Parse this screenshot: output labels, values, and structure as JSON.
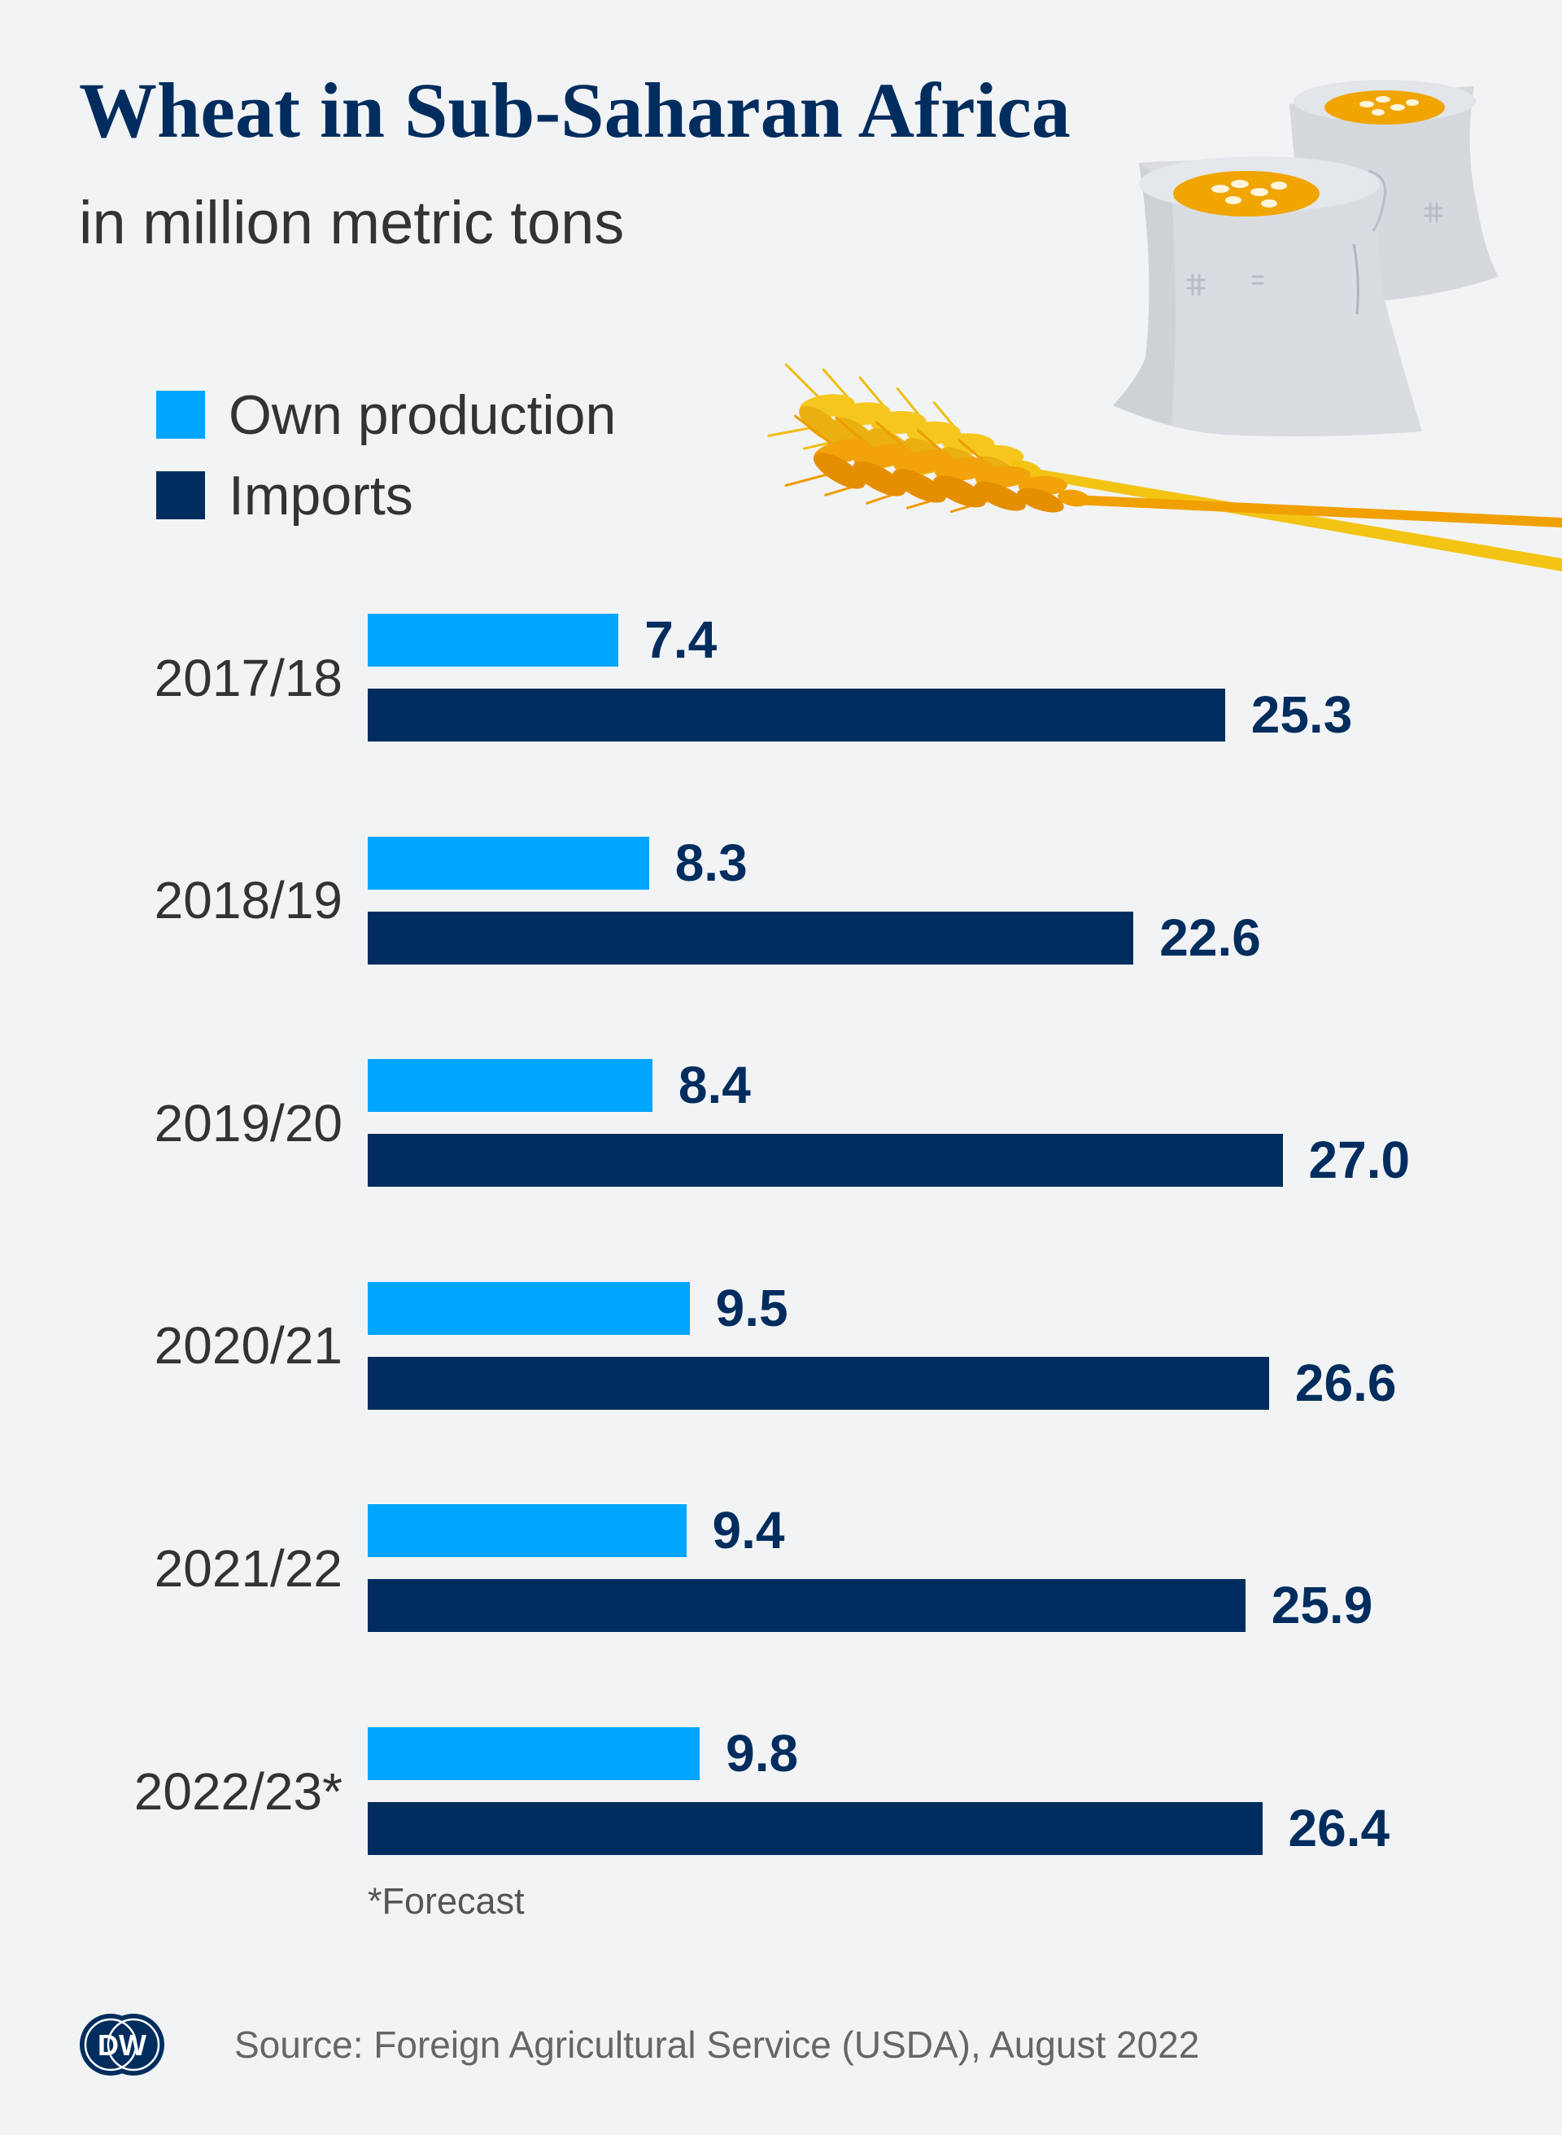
{
  "colors": {
    "background": "#f2f3f5",
    "title": "#002d5e",
    "text": "#333333"
  },
  "chart_data": {
    "type": "bar",
    "orientation": "horizontal",
    "title": "Wheat in Sub-Saharan Africa",
    "subtitle": "in million metric tons",
    "xlabel": "",
    "ylabel": "",
    "categories": [
      "2017/18",
      "2018/19",
      "2019/20",
      "2020/21",
      "2021/22",
      "2022/23*"
    ],
    "series": [
      {
        "name": "Own production",
        "color": "#00a5ff",
        "values": [
          7.4,
          8.3,
          8.4,
          9.5,
          9.4,
          9.8
        ],
        "labels": [
          "7.4",
          "8.3",
          "8.4",
          "9.5",
          "9.4",
          "9.8"
        ]
      },
      {
        "name": "Imports",
        "color": "#002d5e",
        "values": [
          25.3,
          22.6,
          27.0,
          26.6,
          25.9,
          26.4
        ],
        "labels": [
          "25.3",
          "22.6",
          "27.0",
          "26.6",
          "25.9",
          "26.4"
        ]
      }
    ],
    "legend": "top-left",
    "grid": false,
    "axes_visible": false
  },
  "footnote": "*Forecast",
  "source": "Source: Foreign Agricultural Service (USDA), August 2022",
  "logo_text": "DW"
}
